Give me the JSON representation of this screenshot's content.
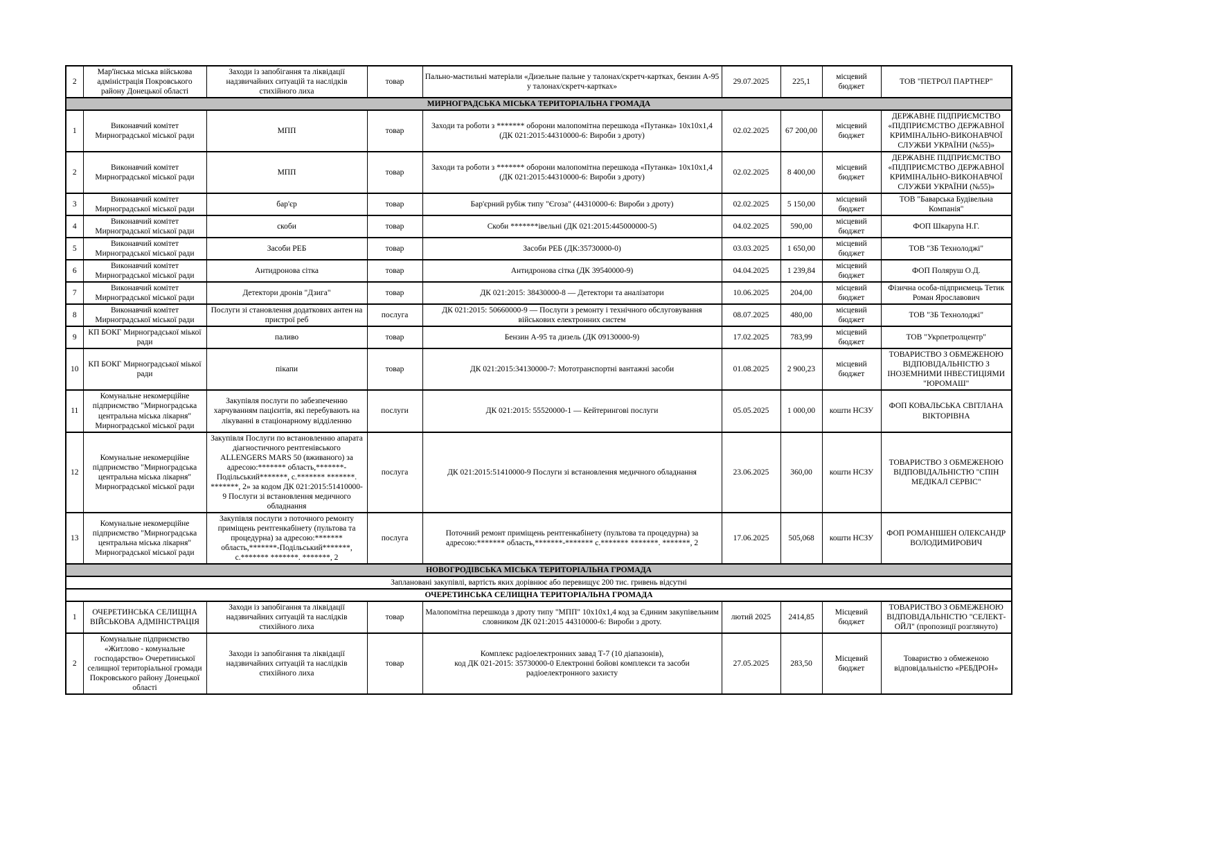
{
  "page": {
    "background": "#ffffff",
    "grid_color": "#000000",
    "section_header_bg": "#bfbfbf"
  },
  "table": {
    "blocks": [
      {
        "kind": "row",
        "num": "2",
        "org": "Мар'їнська міська військова адміністрація Покровського району Донецької області",
        "subject": "Заходи із запобігання та ліквідації надзвичайних ситуацій та наслідків стихійного лиха",
        "type": "товар",
        "desc": "Пально-мастильні матеріали «Дизельне пальне у талонах/скретч-картках, бензин А-95 у талонах/скретч-картках»",
        "date": "29.07.2025",
        "amount": "225,1",
        "budget": "місцевий бюджет",
        "supplier": "ТОВ \"ПЕТРОЛ ПАРТНЕР\""
      },
      {
        "kind": "section-header",
        "label": "МИРНОГРАДСЬКА МІСЬКА ТЕРИТОРІАЛЬНА ГРОМАДА"
      },
      {
        "kind": "row",
        "num": "1",
        "org": "Виконавчий комітет Мирноградської міської ради",
        "subject": "МПП",
        "type": "товар",
        "desc": "Заходи та роботи з ******* оборони малопомітна перешкода «Путанка» 10х10х1,4 (ДК 021:2015:44310000-6: Вироби з дроту)",
        "date": "02.02.2025",
        "amount": "67 200,00",
        "budget": "місцевий бюджет",
        "supplier": "ДЕРЖАВНЕ ПІДПРИЄМСТВО «ПІДПРИЄМСТВО ДЕРЖАВНОЇ КРИМІНАЛЬНО-ВИКОНАВЧОЇ СЛУЖБИ УКРАЇНИ (№55)»"
      },
      {
        "kind": "row",
        "num": "2",
        "org": "Виконавчий комітет Мирноградської міської ради",
        "subject": "МПП",
        "type": "товар",
        "desc": "Заходи та роботи з ******* оборони малопомітна перешкода «Путанка» 10х10х1,4 (ДК 021:2015:44310000-6: Вироби з дроту)",
        "date": "02.02.2025",
        "amount": "8 400,00",
        "budget": "місцевий бюджет",
        "supplier": "ДЕРЖАВНЕ ПІДПРИЄМСТВО «ПІДПРИЄМСТВО ДЕРЖАВНОЇ КРИМІНАЛЬНО-ВИКОНАВЧОЇ СЛУЖБИ УКРАЇНИ (№55)»"
      },
      {
        "kind": "row",
        "num": "3",
        "org": "Виконавчий комітет Мирноградської міської ради",
        "subject": "бар'єр",
        "type": "товар",
        "desc": "Бар'єрний рубіж типу \"Єгоза\" (44310000-6: Вироби з дроту)",
        "date": "02.02.2025",
        "amount": "5 150,00",
        "budget": "місцевий бюджет",
        "supplier": "ТОВ \"Баварська Будівельна Компанія\""
      },
      {
        "kind": "row",
        "num": "4",
        "org": "Виконавчий комітет Мирноградської міської ради",
        "subject": "скоби",
        "type": "товар",
        "desc": "Скоби *******івельні (ДК 021:2015:445000000-5)",
        "date": "04.02.2025",
        "amount": "590,00",
        "budget": "місцевий бюджет",
        "supplier": "ФОП Шкарупа Н.Г."
      },
      {
        "kind": "row",
        "num": "5",
        "org": "Виконавчий комітет Мирноградської міської ради",
        "subject": "Засоби РЕБ",
        "type": "товар",
        "desc": "Засоби РЕБ (ДК:35730000-0)",
        "date": "03.03.2025",
        "amount": "1 650,00",
        "budget": "місцевий бюджет",
        "supplier": "ТОВ \"ЗБ Технолоджі\""
      },
      {
        "kind": "row",
        "num": "6",
        "org": "Виконавчий комітет Мирноградської міської ради",
        "subject": "Антидронова сітка",
        "type": "товар",
        "desc": "Антидронова сітка (ДК 39540000-9)",
        "date": "04.04.2025",
        "amount": "1 239,84",
        "budget": "місцевий бюджет",
        "supplier": "ФОП Поляруш О.Д."
      },
      {
        "kind": "row",
        "num": "7",
        "org": "Виконавчий комітет Мирноградської міської ради",
        "subject": "Детектори дронів \"Дзига\"",
        "type": "товар",
        "desc": "ДК 021:2015: 38430000-8 — Детектори та аналізатори",
        "date": "10.06.2025",
        "amount": "204,00",
        "budget": "місцевий бюджет",
        "supplier": "Фізична особа-підприємець Тетик Роман Ярославович"
      },
      {
        "kind": "row",
        "num": "8",
        "org": "Виконавчий комітет Мирноградської міської ради",
        "subject": "Послуги зі становлення додаткових антен на пристрої реб",
        "type": "послуга",
        "desc": "ДК 021:2015: 50660000-9 — Послуги з ремонту і технічного обслуговування військових електронних систем",
        "date": "08.07.2025",
        "amount": "480,00",
        "budget": "місцевий бюджет",
        "supplier": "ТОВ \"ЗБ Технолоджі\""
      },
      {
        "kind": "row",
        "num": "9",
        "org": "КП БОКГ Мирноградської міької ради",
        "subject": "паливо",
        "type": "товар",
        "desc": "Бензин А-95 та дизель (ДК 09130000-9)",
        "date": "17.02.2025",
        "amount": "783,99",
        "budget": "місцевий бюджет",
        "supplier": "ТОВ \"Укрпетролцентр\""
      },
      {
        "kind": "row",
        "num": "10",
        "org": "КП БОКГ Мирноградської міької ради",
        "subject": "пікапи",
        "type": "товар",
        "desc": "ДК 021:2015:34130000-7: Мототранспортні вантажні засоби",
        "date": "01.08.2025",
        "amount": "2 900,23",
        "budget": "місцевий бюджет",
        "supplier": "ТОВАРИСТВО З ОБМЕЖЕНОЮ ВІДПОВІДАЛЬНІСТЮ З ІНОЗЕМНИМИ ІНВЕСТИЦІЯМИ \"ЮРОМАШ\""
      },
      {
        "kind": "row",
        "num": "11",
        "org": "Комунальне некомерційне підприємство \"Мирноградська центральна міська лікарня\" Мирноградської міської ради",
        "subject": "Закупівля послуги по забезпеченню харчуванням пацієнтів, які перебувають на лікуванні в стаціонарному відділенню",
        "type": "послуги",
        "desc": "ДК 021:2015: 55520000-1 — Кейтерингові послуги",
        "date": "05.05.2025",
        "amount": "1 000,00",
        "budget": "кошти НСЗУ",
        "supplier": "ФОП КОВАЛЬСЬКА СВІТЛАНА ВІКТОРІВНА"
      },
      {
        "kind": "row",
        "num": "12",
        "org": "Комунальне некомерційне підприємство \"Мирноградська центральна міська лікарня\" Мирноградської міської ради",
        "subject": "Закупівля Послуги по встановленню апарата діагностичного рентгенівського ALLENGERS MARS 50 (вживаного) за адресою:******* область,*******-Подільський*******, с.******* *******. *******, 2» за кодом ДК 021:2015:51410000-9 Послуги зі встановлення медичного обладнання",
        "type": "послуга",
        "desc": "ДК 021:2015:51410000-9 Послуги зі встановлення медичного обладнання",
        "date": "23.06.2025",
        "amount": "360,00",
        "budget": "кошти НСЗУ",
        "supplier": "ТОВАРИСТВО З ОБМЕЖЕНОЮ ВІДПОВІДАЛЬНІСТЮ \"СПІН МЕДІКАЛ СЕРВІС\""
      },
      {
        "kind": "row",
        "num": "13",
        "org": "Комунальне некомерційне підприємство \"Мирноградська центральна міська лікарня\" Мирноградської міської ради",
        "subject": "Закупівля послуги з поточного ремонту приміщень рентгенкабінету (пультова та процедурна) за адресою:******* область,*******-Подільський*******, с.******* *******. *******, 2",
        "type": "послуга",
        "desc": "Поточний ремонт приміщень рентгенкабінету (пультова та процедурна) за адресою:******* область,*******-******* с.******* *******. *******, 2",
        "date": "17.06.2025",
        "amount": "505,068",
        "budget": "кошти НСЗУ",
        "supplier": "ФОП РОМАНІШЕН ОЛЕКСАНДР ВОЛОДИМИРОВИЧ"
      },
      {
        "kind": "section-header",
        "label": "НОВОГРОДІВСЬКА МІСЬКА ТЕРИТОРІАЛЬНА ГРОМАДА"
      },
      {
        "kind": "note",
        "label": "Заплановані закупівлі, вартість яких дорівнює або перевищує 200 тис. гривень відсутні"
      },
      {
        "kind": "section-header-plain",
        "label": "ОЧЕРЕТИНСЬКА СЕЛИЩНА ТЕРИТОРІАЛЬНА ГРОМАДА"
      },
      {
        "kind": "row",
        "num": "1",
        "org": "ОЧЕРЕТИНСЬКА СЕЛИЩНА ВІЙСЬКОВА АДМІНІСТРАЦІЯ",
        "subject": "Заходи із запобігання та ліквідації надзвичайних ситуацій та наслідків стихійного лиха",
        "type": "товар",
        "desc": "Малопомітна перешкода з дроту типу \"МПП\" 10х10х1,4 код за Єдиним закупівельним словником ДК 021:2015 44310000-6: Вироби з дроту.",
        "date": "лютий 2025",
        "amount": "2414,85",
        "budget": "Місцевий бюджет",
        "supplier": "ТОВАРИСТВО З ОБМЕЖЕНОЮ ВІДПОВІДАЛЬНІСТЮ \"СЕЛЕКТ-ОЙЛ\" (пропозиції розглянуто)"
      },
      {
        "kind": "row",
        "num": "2",
        "org": "Комунальне підприємство «Житлово - комунальне господарство» Очеретинської селищної територіальної громади Покровського району Донецької області",
        "subject": "Заходи із запобігання та ліквідації надзвичайних ситуацій та наслідків стихійного лиха",
        "type": "товар",
        "desc": "Комплекс радіоелектронних завад Т-7 (10 діапазонів),\nкод ДК 021-2015: 35730000-0 Електронні бойові комплекси та засоби радіоелектронного захисту",
        "date": "27.05.2025",
        "amount": "283,50",
        "budget": "Місцевий бюджет",
        "supplier": "Товариство з обмеженою відповідальністю «РЕБДРОН»"
      }
    ]
  }
}
